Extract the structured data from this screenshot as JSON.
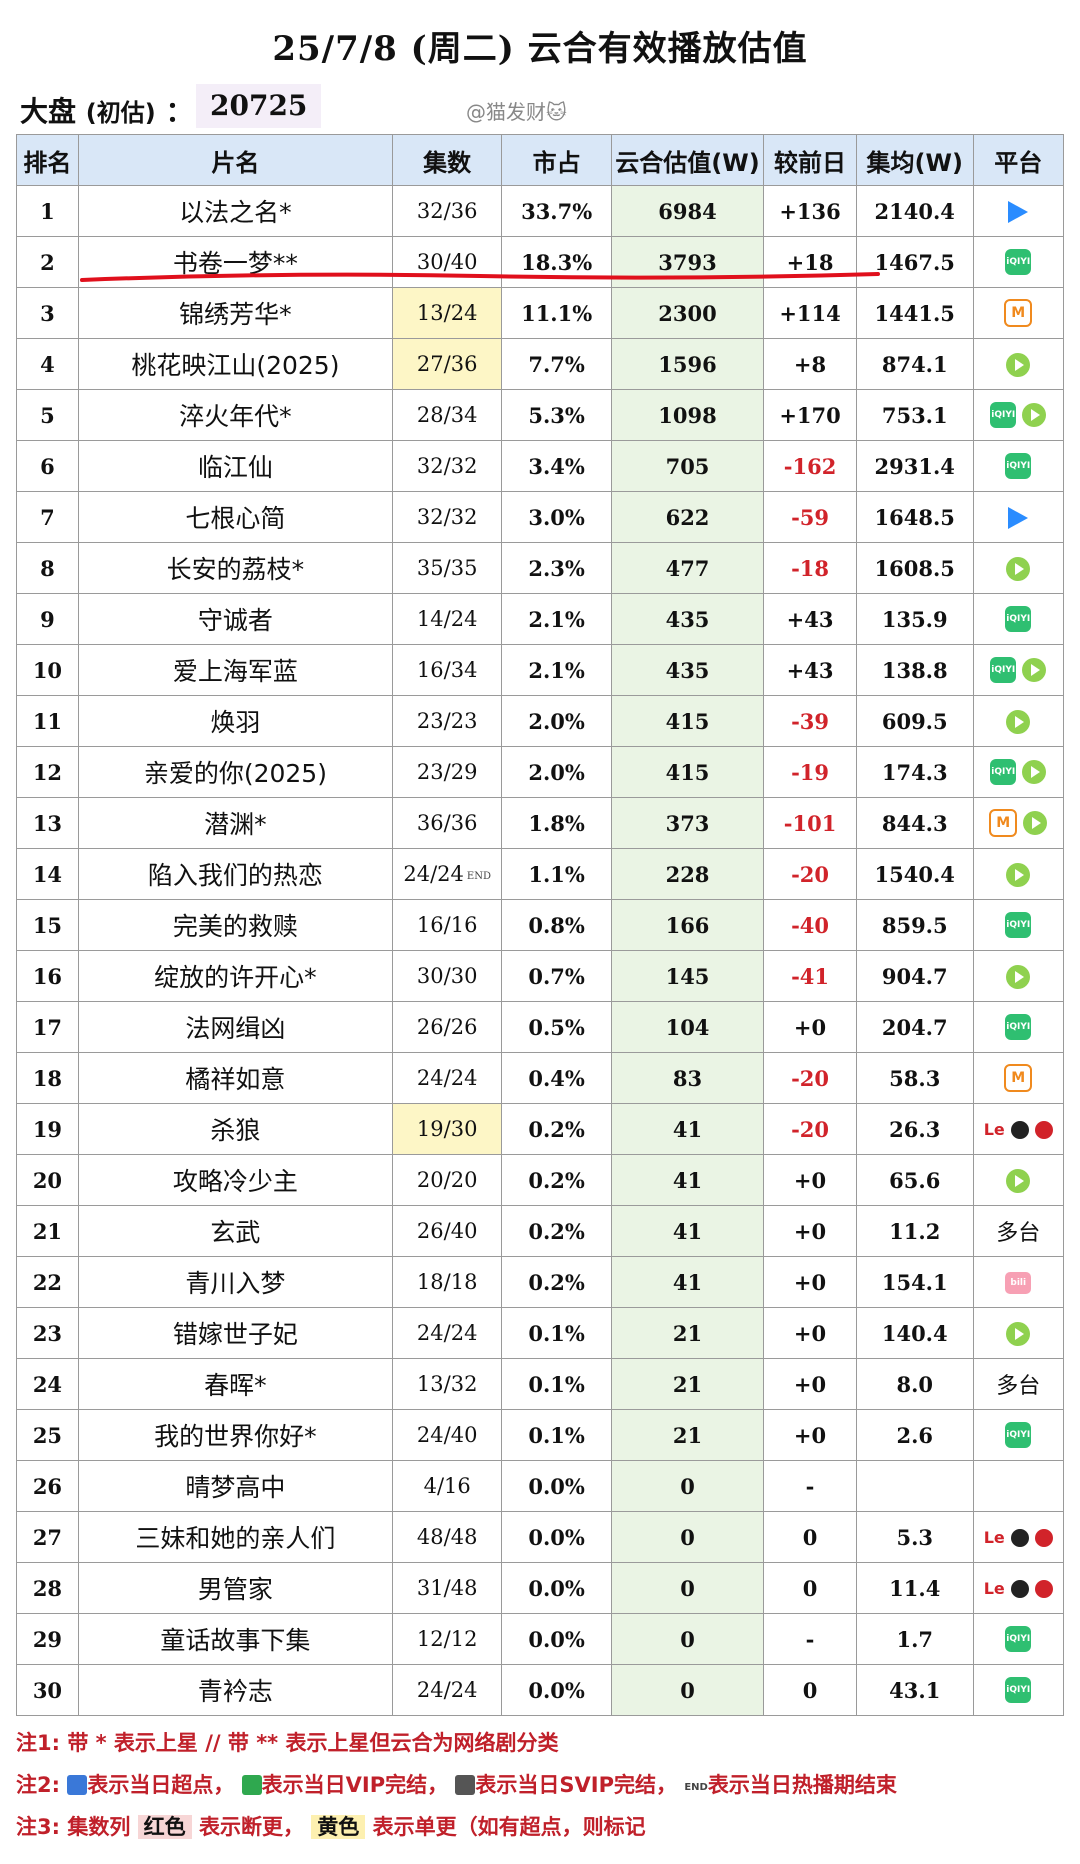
{
  "header": {
    "title": "25/7/8 (周二) 云合有效播放估值",
    "dapan_label": "大盘",
    "dapan_sub": "(初估)",
    "dapan_colon": "：",
    "dapan_value": "20725",
    "author": "@猫发财🐱"
  },
  "table": {
    "columns": [
      "排名",
      "片名",
      "集数",
      "市占",
      "云合估值(W)",
      "较前日",
      "集均(W)",
      "平台"
    ],
    "rows": [
      {
        "rank": "1",
        "name": "以法之名*",
        "episodes": "32/36",
        "share": "33.7%",
        "estimate": "6984",
        "diff": "+136",
        "avg": "2140.4",
        "platforms": [
          "youku"
        ]
      },
      {
        "rank": "2",
        "name": "书卷一梦**",
        "episodes": "30/40",
        "share": "18.3%",
        "estimate": "3793",
        "diff": "+18",
        "avg": "1467.5",
        "platforms": [
          "iqiyi"
        ]
      },
      {
        "rank": "3",
        "name": "锦绣芳华*",
        "episodes": "13/24",
        "share": "11.1%",
        "estimate": "2300",
        "diff": "+114",
        "avg": "1441.5",
        "platforms": [
          "mango"
        ],
        "ep_highlight": "yellow"
      },
      {
        "rank": "4",
        "name": "桃花映江山(2025)",
        "episodes": "27/36",
        "share": "7.7%",
        "estimate": "1596",
        "diff": "+8",
        "avg": "874.1",
        "platforms": [
          "tencent"
        ],
        "ep_highlight": "yellow"
      },
      {
        "rank": "5",
        "name": "淬火年代*",
        "episodes": "28/34",
        "share": "5.3%",
        "estimate": "1098",
        "diff": "+170",
        "avg": "753.1",
        "platforms": [
          "iqiyi",
          "tencent"
        ]
      },
      {
        "rank": "6",
        "name": "临江仙",
        "episodes": "32/32",
        "share": "3.4%",
        "estimate": "705",
        "diff": "-162",
        "avg": "2931.4",
        "platforms": [
          "iqiyi"
        ]
      },
      {
        "rank": "7",
        "name": "七根心简",
        "episodes": "32/32",
        "share": "3.0%",
        "estimate": "622",
        "diff": "-59",
        "avg": "1648.5",
        "platforms": [
          "youku"
        ]
      },
      {
        "rank": "8",
        "name": "长安的荔枝*",
        "episodes": "35/35",
        "share": "2.3%",
        "estimate": "477",
        "diff": "-18",
        "avg": "1608.5",
        "platforms": [
          "tencent"
        ]
      },
      {
        "rank": "9",
        "name": "守诚者",
        "episodes": "14/24",
        "share": "2.1%",
        "estimate": "435",
        "diff": "+43",
        "avg": "135.9",
        "platforms": [
          "iqiyi"
        ]
      },
      {
        "rank": "10",
        "name": "爱上海军蓝",
        "episodes": "16/34",
        "share": "2.1%",
        "estimate": "435",
        "diff": "+43",
        "avg": "138.8",
        "platforms": [
          "iqiyi",
          "tencent"
        ]
      },
      {
        "rank": "11",
        "name": "焕羽",
        "episodes": "23/23",
        "share": "2.0%",
        "estimate": "415",
        "diff": "-39",
        "avg": "609.5",
        "platforms": [
          "tencent"
        ]
      },
      {
        "rank": "12",
        "name": "亲爱的你(2025)",
        "episodes": "23/29",
        "share": "2.0%",
        "estimate": "415",
        "diff": "-19",
        "avg": "174.3",
        "platforms": [
          "iqiyi",
          "tencent"
        ]
      },
      {
        "rank": "13",
        "name": "潜渊*",
        "episodes": "36/36",
        "share": "1.8%",
        "estimate": "373",
        "diff": "-101",
        "avg": "844.3",
        "platforms": [
          "mango",
          "tencent"
        ]
      },
      {
        "rank": "14",
        "name": "陷入我们的热恋",
        "episodes": "24/24",
        "ep_end": true,
        "share": "1.1%",
        "estimate": "228",
        "diff": "-20",
        "avg": "1540.4",
        "platforms": [
          "tencent"
        ]
      },
      {
        "rank": "15",
        "name": "完美的救赎",
        "episodes": "16/16",
        "share": "0.8%",
        "estimate": "166",
        "diff": "-40",
        "avg": "859.5",
        "platforms": [
          "iqiyi"
        ]
      },
      {
        "rank": "16",
        "name": "绽放的许开心*",
        "episodes": "30/30",
        "share": "0.7%",
        "estimate": "145",
        "diff": "-41",
        "avg": "904.7",
        "platforms": [
          "tencent"
        ]
      },
      {
        "rank": "17",
        "name": "法网缉凶",
        "episodes": "26/26",
        "share": "0.5%",
        "estimate": "104",
        "diff": "+0",
        "avg": "204.7",
        "platforms": [
          "iqiyi"
        ]
      },
      {
        "rank": "18",
        "name": "橘祥如意",
        "episodes": "24/24",
        "share": "0.4%",
        "estimate": "83",
        "diff": "-20",
        "avg": "58.3",
        "platforms": [
          "mango"
        ]
      },
      {
        "rank": "19",
        "name": "杀狼",
        "episodes": "19/30",
        "share": "0.2%",
        "estimate": "41",
        "diff": "-20",
        "avg": "26.3",
        "platforms": [
          "le",
          "dark",
          "red"
        ],
        "ep_highlight": "yellow"
      },
      {
        "rank": "20",
        "name": "攻略冷少主",
        "episodes": "20/20",
        "share": "0.2%",
        "estimate": "41",
        "diff": "+0",
        "avg": "65.6",
        "platforms": [
          "tencent"
        ]
      },
      {
        "rank": "21",
        "name": "玄武",
        "episodes": "26/40",
        "share": "0.2%",
        "estimate": "41",
        "diff": "+0",
        "avg": "11.2",
        "platforms_text": "多台"
      },
      {
        "rank": "22",
        "name": "青川入梦",
        "episodes": "18/18",
        "share": "0.2%",
        "estimate": "41",
        "diff": "+0",
        "avg": "154.1",
        "platforms": [
          "bili"
        ]
      },
      {
        "rank": "23",
        "name": "错嫁世子妃",
        "episodes": "24/24",
        "share": "0.1%",
        "estimate": "21",
        "diff": "+0",
        "avg": "140.4",
        "platforms": [
          "tencent"
        ]
      },
      {
        "rank": "24",
        "name": "春晖*",
        "episodes": "13/32",
        "share": "0.1%",
        "estimate": "21",
        "diff": "+0",
        "avg": "8.0",
        "platforms_text": "多台"
      },
      {
        "rank": "25",
        "name": "我的世界你好*",
        "episodes": "24/40",
        "share": "0.1%",
        "estimate": "21",
        "diff": "+0",
        "avg": "2.6",
        "platforms": [
          "iqiyi"
        ]
      },
      {
        "rank": "26",
        "name": "晴梦高中",
        "episodes": "4/16",
        "share": "0.0%",
        "estimate": "0",
        "diff": "-",
        "avg": "",
        "platforms": []
      },
      {
        "rank": "27",
        "name": "三妹和她的亲人们",
        "episodes": "48/48",
        "share": "0.0%",
        "estimate": "0",
        "diff": "0",
        "avg": "5.3",
        "platforms": [
          "le",
          "dark",
          "red"
        ]
      },
      {
        "rank": "28",
        "name": "男管家",
        "episodes": "31/48",
        "share": "0.0%",
        "estimate": "0",
        "diff": "0",
        "avg": "11.4",
        "platforms": [
          "le",
          "dark",
          "red"
        ]
      },
      {
        "rank": "29",
        "name": "童话故事下集",
        "episodes": "12/12",
        "share": "0.0%",
        "estimate": "0",
        "diff": "-",
        "avg": "1.7",
        "platforms": [
          "iqiyi"
        ]
      },
      {
        "rank": "30",
        "name": "青衿志",
        "episodes": "24/24",
        "share": "0.0%",
        "estimate": "0",
        "diff": "0",
        "avg": "43.1",
        "platforms": [
          "iqiyi"
        ]
      }
    ]
  },
  "platform_labels": {
    "iqiyi": "iQIYI",
    "mango": "M",
    "le": "Le",
    "bili": "bili",
    "end": "END"
  },
  "notes": {
    "n1_label": "注1:",
    "n1_text": "带 * 表示上星 // 带 ** 表示上星但云合为网络剧分类",
    "n2_label": "注2:",
    "n2_a": "表示当日超点，",
    "n2_b": "表示当日VIP完结，",
    "n2_c": "表示当日SVIP完结，",
    "n2_d": "表示当日热播期结束",
    "n3_label": "注3:",
    "n3_a": "集数列",
    "n3_red": "红色",
    "n3_b": "表示断更，",
    "n3_yellow": "黄色",
    "n3_c": "表示单更（如有超点，则标记"
  },
  "colors": {
    "header_bg": "#d9e7f7",
    "estimate_bg": "#eaf4e4",
    "negative": "#d1232a",
    "highlight_yellow": "#fdf6c6",
    "underline_red": "#e0101c"
  }
}
